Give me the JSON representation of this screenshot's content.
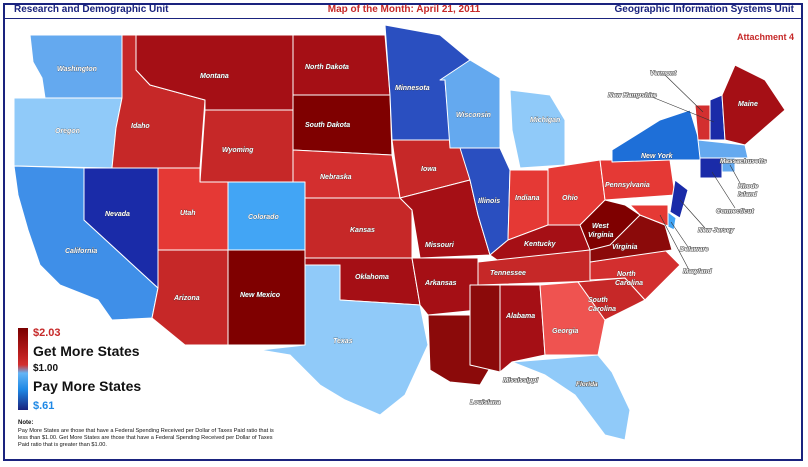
{
  "header": {
    "left": "Research and Demographic Unit",
    "center": "Map of the Month: April 21, 2011",
    "right": "Geographic Information Systems Unit"
  },
  "attachment": "Attachment 4",
  "legend": {
    "max_value": "$2.03",
    "get_label": "Get More States",
    "mid_value": "$1.00",
    "pay_label": "Pay More States",
    "min_value": "$.61"
  },
  "note": {
    "title": "Note:",
    "text": "Pay More States are those that have a Federal Spending Received per Dollar of Taxes Paid ratio that is less than $1.00. Get More States are those that have a Federal Spending Received per Dollar of Taxes Paid ratio that is greater than $1.00."
  },
  "colors": {
    "darkest_red": "#7f0000",
    "dark_red": "#a50f15",
    "red": "#c62828",
    "medium_red": "#e53935",
    "light_red": "#ef5350",
    "light_blue": "#90caf9",
    "medium_blue": "#42a5f5",
    "blue": "#1e6fd8",
    "dark_blue": "#1a2ba8"
  },
  "states": {
    "washington": "Washington",
    "oregon": "Oregon",
    "california": "California",
    "nevada": "Nevada",
    "idaho": "Idaho",
    "montana": "Montana",
    "wyoming": "Wyoming",
    "utah": "Utah",
    "colorado": "Colorado",
    "arizona": "Arizona",
    "new_mexico": "New Mexico",
    "north_dakota": "North Dakota",
    "south_dakota": "South Dakota",
    "nebraska": "Nebraska",
    "kansas": "Kansas",
    "oklahoma": "Oklahoma",
    "texas": "Texas",
    "minnesota": "Minnesota",
    "iowa": "Iowa",
    "missouri": "Missouri",
    "arkansas": "Arkansas",
    "louisiana": "Louisiana",
    "wisconsin": "Wisconsin",
    "illinois": "Illinois",
    "michigan": "Michigan",
    "indiana": "Indiana",
    "ohio": "Ohio",
    "kentucky": "Kentucky",
    "tennessee": "Tennessee",
    "mississippi": "Mississippi",
    "alabama": "Alabama",
    "georgia": "Georgia",
    "florida": "Florida",
    "south_carolina": "South Carolina",
    "north_carolina": "North Carolina",
    "virginia": "Virginia",
    "west_virginia": "West Virginia",
    "pennsylvania": "Pennsylvania",
    "new_york": "New York",
    "vermont": "Vermont",
    "new_hampshire": "New Hampshire",
    "maine": "Maine",
    "massachusetts": "Massachusetts",
    "rhode_island": "Rhode Island",
    "connecticut": "Connecticut",
    "new_jersey": "New Jersey",
    "delaware": "Delaware",
    "maryland": "Maryland"
  }
}
